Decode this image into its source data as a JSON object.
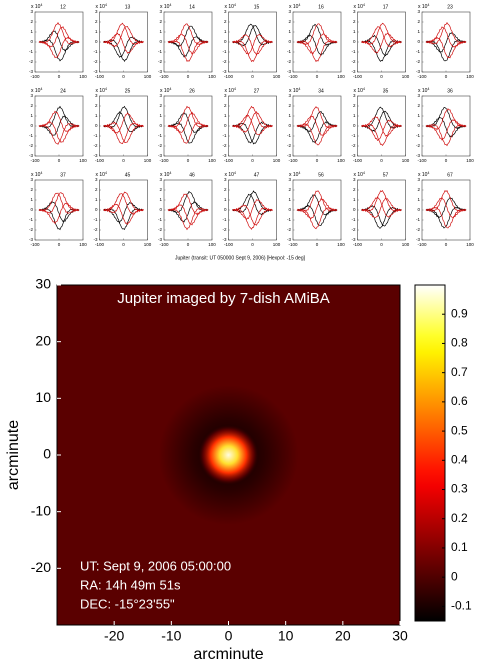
{
  "chart_data": [
    {
      "type": "line",
      "titles": [
        "12",
        "13",
        "14",
        "15",
        "16",
        "17",
        "23",
        "24",
        "25",
        "26",
        "27",
        "34",
        "35",
        "36",
        "37",
        "45",
        "46",
        "47",
        "56",
        "57",
        "67"
      ],
      "multiplier": {
        "base": "x 10",
        "exp": "4"
      },
      "xlim": [
        -100,
        100
      ],
      "xticks": [
        -100,
        0,
        100
      ],
      "ylim": [
        -3,
        3
      ],
      "yticks": [
        3,
        2,
        1,
        0,
        -1,
        -2,
        -3
      ],
      "caption": "Jupiter (transit: UT 050000 Sept 9, 2006) [Hexpol: -15 deg]"
    },
    {
      "type": "heatmap",
      "title": "Jupiter imaged by 7-dish AMiBA",
      "annotations": [
        "UT: Sept 9, 2006  05:00:00",
        "RA: 14h 49m 51s",
        "DEC: -15°23'55\""
      ],
      "xlabel": "arcminute",
      "ylabel": "arcminute",
      "xlim": [
        -30,
        30
      ],
      "xticks": [
        -20,
        -10,
        0,
        10,
        20,
        30
      ],
      "ylim": [
        -30,
        30
      ],
      "yticks": [
        -20,
        -10,
        0,
        10,
        20,
        30
      ],
      "colormap": "hot",
      "clim": [
        -0.15,
        1.0
      ],
      "cticks": [
        -0.1,
        0,
        0.1,
        0.2,
        0.3,
        0.4,
        0.5,
        0.6,
        0.7,
        0.8,
        0.9
      ],
      "background": 0.02,
      "peak": {
        "x": 0,
        "y": 0,
        "value": 0.97
      }
    }
  ]
}
